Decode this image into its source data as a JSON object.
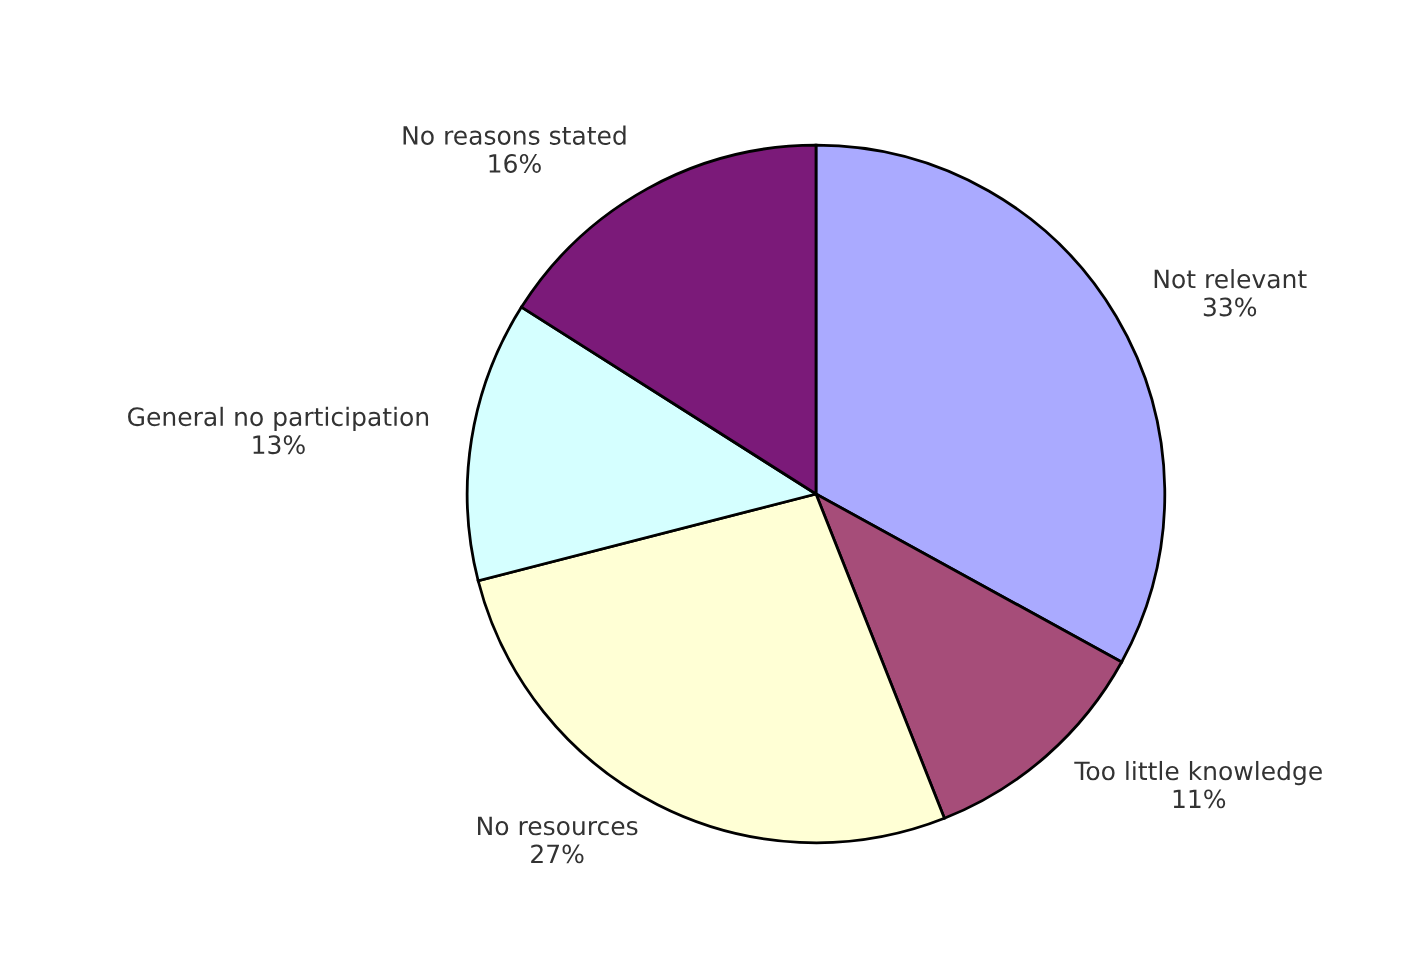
{
  "chart_data": {
    "type": "pie",
    "categories": [
      "Not relevant",
      "Too little knowledge",
      "No resources",
      "General no participation",
      "No reasons stated"
    ],
    "values": [
      33,
      11,
      27,
      13,
      16
    ],
    "value_labels": [
      "33%",
      "11%",
      "27%",
      "13%",
      "16%"
    ],
    "colors": [
      "#aaaaff",
      "#a64d79",
      "#ffffd5",
      "#d5ffff",
      "#7b1a79"
    ]
  }
}
